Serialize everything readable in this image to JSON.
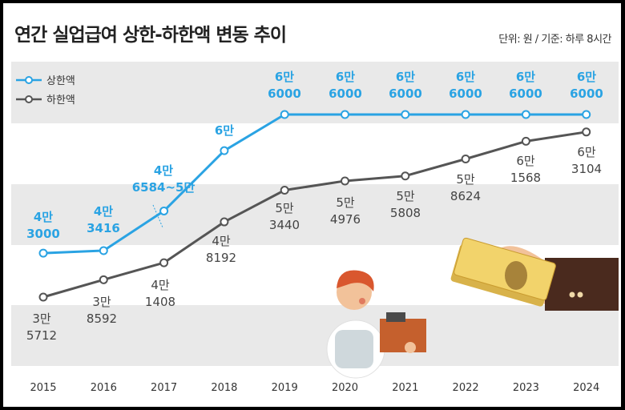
{
  "title": "연간 실업급여 상한-하한액 변동 추이",
  "unit_note": "단위: 원 / 기준: 하루 8시간",
  "colors": {
    "upper": "#2aa3e3",
    "lower": "#555555",
    "band": "#e9e9e9"
  },
  "chart_data": {
    "type": "line",
    "title": "연간 실업급여 상한-하한액 변동 추이",
    "xlabel": "",
    "ylabel": "",
    "categories": [
      "2015",
      "2016",
      "2017",
      "2018",
      "2019",
      "2020",
      "2021",
      "2022",
      "2023",
      "2024"
    ],
    "series": [
      {
        "name": "상한액",
        "values": [
          43000,
          43416,
          50000,
          60000,
          66000,
          66000,
          66000,
          66000,
          66000,
          66000
        ],
        "labels": [
          [
            "4만",
            "3000"
          ],
          [
            "4만",
            "3416"
          ],
          [
            "4만",
            "6584~5만"
          ],
          [
            "6만"
          ],
          [
            "6만",
            "6000"
          ],
          [
            "6만",
            "6000"
          ],
          [
            "6만",
            "6000"
          ],
          [
            "6만",
            "6000"
          ],
          [
            "6만",
            "6000"
          ],
          [
            "6만",
            "6000"
          ]
        ]
      },
      {
        "name": "하한액",
        "values": [
          35712,
          38592,
          41408,
          48192,
          53440,
          54976,
          55808,
          58624,
          61568,
          63104
        ],
        "labels": [
          [
            "3만",
            "5712"
          ],
          [
            "3만",
            "8592"
          ],
          [
            "4만",
            "1408"
          ],
          [
            "4만",
            "8192"
          ],
          [
            "5만",
            "3440"
          ],
          [
            "5만",
            "4976"
          ],
          [
            "5만",
            "5808"
          ],
          [
            "5만",
            "8624"
          ],
          [
            "6만",
            "1568"
          ],
          [
            "6만",
            "3104"
          ]
        ]
      }
    ],
    "grid": "alternating horizontal bands",
    "legend": "top-left"
  }
}
